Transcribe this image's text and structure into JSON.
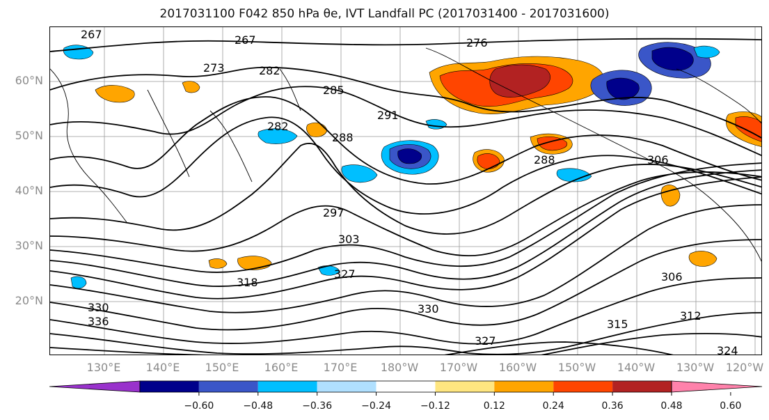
{
  "title": "2017031100 F042 850 hPa θe, IVT Landfall PC (2017031400 - 2017031600)",
  "lat_labels": [
    "60°N",
    "50°N",
    "40°N",
    "30°N",
    "20°N"
  ],
  "lon_labels": [
    "130°E",
    "140°E",
    "150°E",
    "160°E",
    "170°E",
    "180°W",
    "170°W",
    "160°W",
    "150°W",
    "140°W",
    "130°W",
    "120°W"
  ],
  "contour_labels": [
    "267",
    "267",
    "276",
    "273",
    "282",
    "285",
    "291",
    "288",
    "282",
    "288",
    "297",
    "303",
    "306",
    "306",
    "318",
    "327",
    "330",
    "336",
    "330",
    "327",
    "315",
    "312",
    "324"
  ],
  "colorbar": {
    "colors": [
      "#9932cc",
      "#00008b",
      "#3a56c8",
      "#00bfff",
      "#b0e0ff",
      "#ffffff",
      "#ffe680",
      "#ffa500",
      "#ff4500",
      "#b22222",
      "#ff82ab"
    ],
    "tick_labels": [
      "−0.60",
      "−0.48",
      "−0.36",
      "−0.24",
      "−0.12",
      "0.12",
      "0.24",
      "0.36",
      "0.48",
      "0.60"
    ]
  }
}
